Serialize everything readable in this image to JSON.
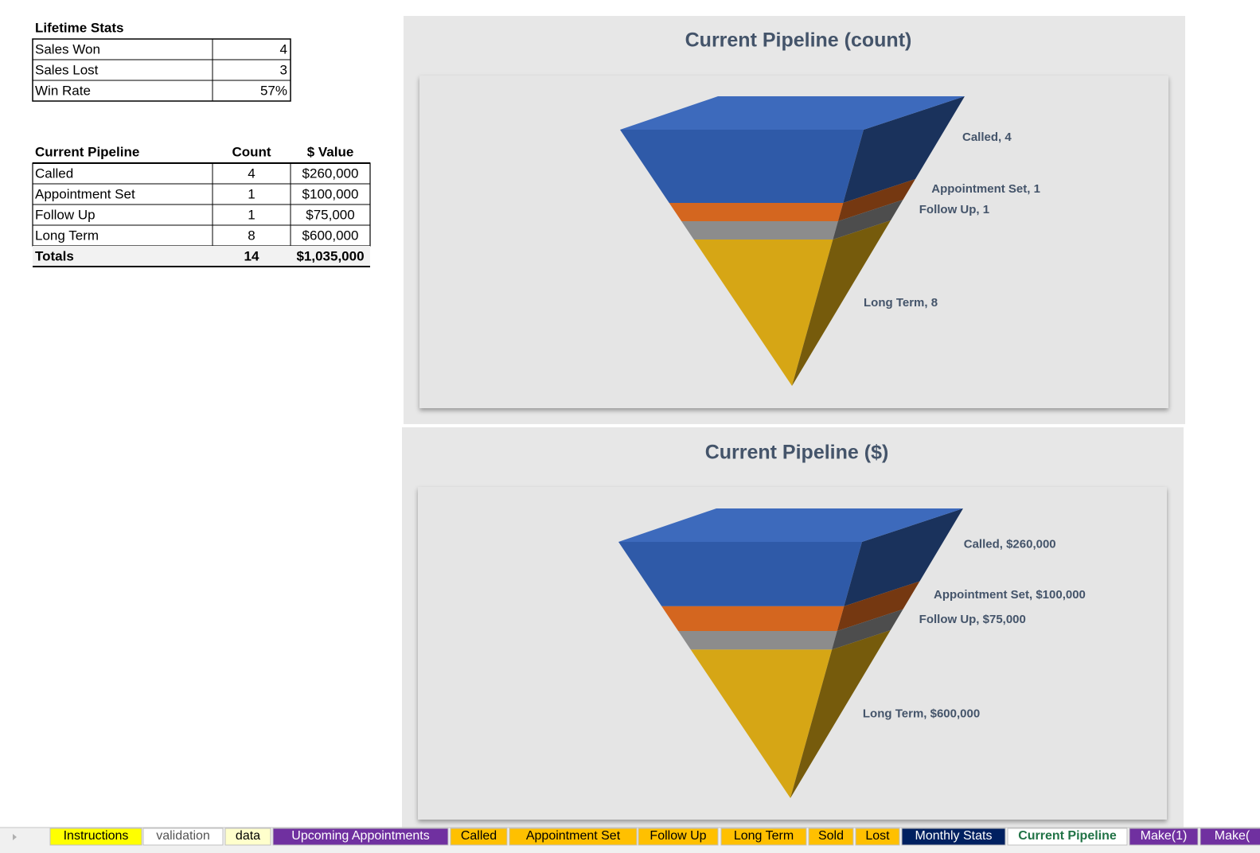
{
  "lifetime_stats": {
    "title": "Lifetime Stats",
    "rows": [
      [
        "Sales Won",
        "4"
      ],
      [
        "Sales Lost",
        "3"
      ],
      [
        "Win Rate",
        "57%"
      ]
    ]
  },
  "pipeline_table": {
    "headers": [
      "Current Pipeline",
      "Count",
      "$ Value"
    ],
    "rows": [
      [
        "Called",
        "4",
        "$260,000"
      ],
      [
        "Appointment Set",
        "1",
        "$100,000"
      ],
      [
        "Follow Up",
        "1",
        "$75,000"
      ],
      [
        "Long Term",
        "8",
        "$600,000"
      ]
    ],
    "totals": [
      "Totals",
      "14",
      "$1,035,000"
    ]
  },
  "charts": [
    {
      "type": "funnel",
      "title": "Current Pipeline (count)",
      "categories": [
        "Called",
        "Appointment Set",
        "Follow Up",
        "Long Term"
      ],
      "values": [
        4,
        1,
        1,
        8
      ],
      "value_labels": [
        "Called, 4",
        "Appointment Set, 1",
        "Follow Up, 1",
        "Long Term, 8"
      ],
      "colors": [
        "#2f5aa8",
        "#d4661f",
        "#8c8c8c",
        "#d6a615"
      ]
    },
    {
      "type": "funnel",
      "title": "Current Pipeline ($)",
      "categories": [
        "Called",
        "Appointment Set",
        "Follow Up",
        "Long Term"
      ],
      "values": [
        260000,
        100000,
        75000,
        600000
      ],
      "value_labels": [
        "Called, $260,000",
        "Appointment Set, $100,000",
        "Follow Up, $75,000",
        "Long Term, $600,000"
      ],
      "colors": [
        "#2f5aa8",
        "#d4661f",
        "#8c8c8c",
        "#d6a615"
      ]
    }
  ],
  "tabs": [
    {
      "name": "Instructions",
      "color": "#ffff00"
    },
    {
      "name": "validation",
      "color": "#ffffff"
    },
    {
      "name": "data",
      "color": "#ffffcc"
    },
    {
      "name": "Upcoming Appointments",
      "color": "#7030a0"
    },
    {
      "name": "Called",
      "color": "#ffc000"
    },
    {
      "name": "Appointment Set",
      "color": "#ffc000"
    },
    {
      "name": "Follow Up",
      "color": "#ffc000"
    },
    {
      "name": "Long Term",
      "color": "#ffc000"
    },
    {
      "name": "Sold",
      "color": "#ffc000"
    },
    {
      "name": "Lost",
      "color": "#ffc000"
    },
    {
      "name": "Monthly Stats",
      "color": "#002060"
    },
    {
      "name": "Current Pipeline",
      "color": "#ffffff",
      "active": true
    },
    {
      "name": "Make(1)",
      "color": "#7030a0"
    },
    {
      "name": "Make(",
      "color": "#7030a0"
    }
  ]
}
